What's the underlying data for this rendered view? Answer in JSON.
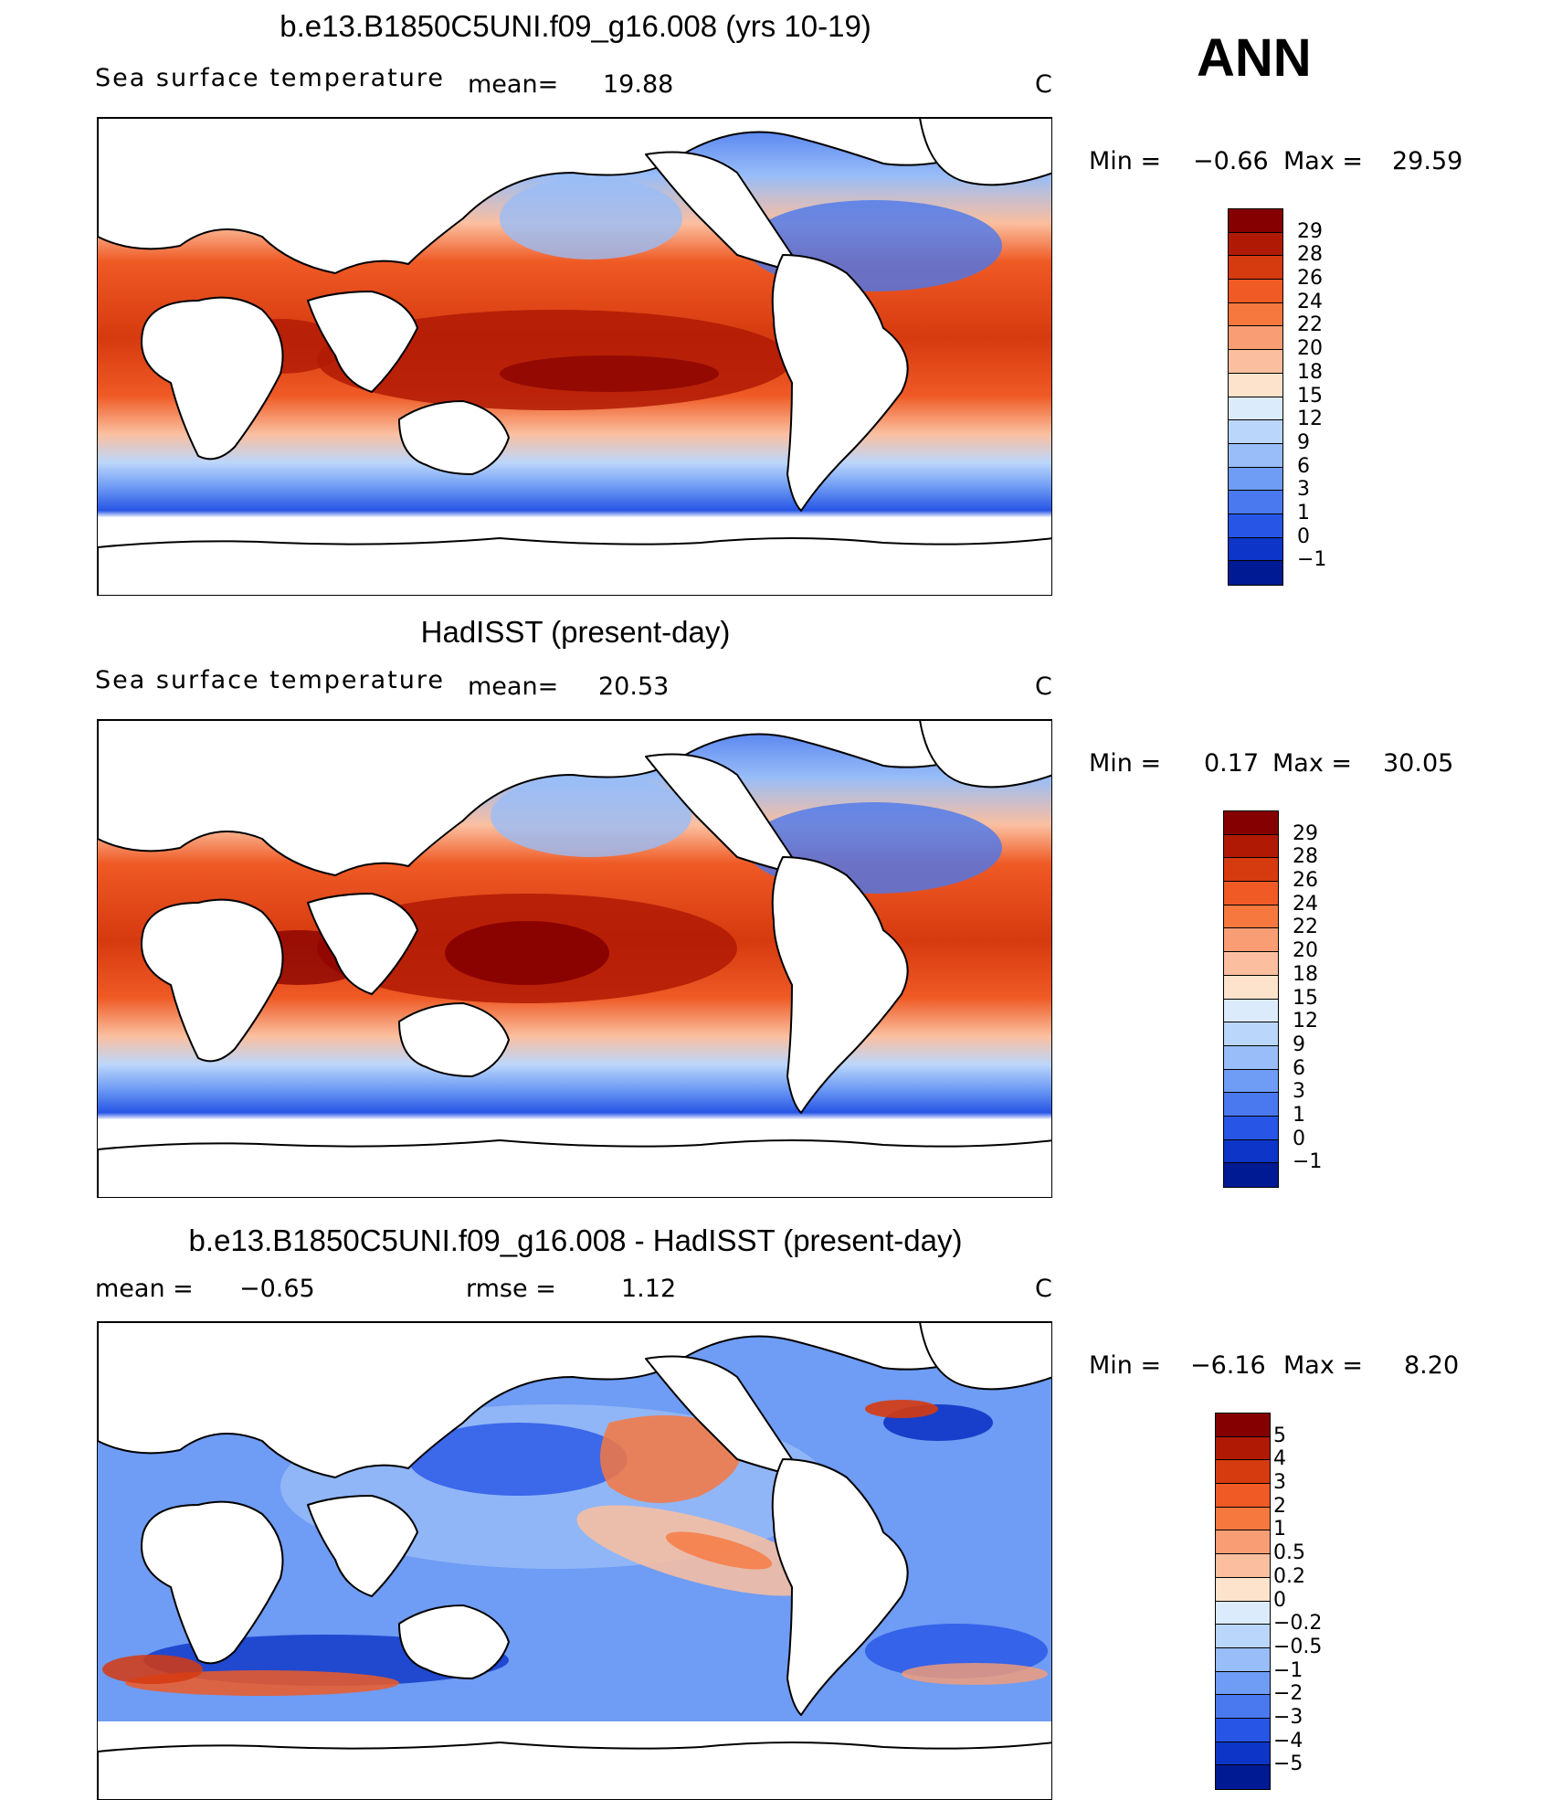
{
  "season": "ANN",
  "panels": [
    {
      "title": "b.e13.B1850C5UNI.f09_g16.008 (yrs 10-19)",
      "left_label": "Sea surface temperature",
      "stat1_label": "mean=",
      "stat1_value": "19.88",
      "stat2_label": "",
      "stat2_value": "",
      "units": "C",
      "min_label": "Min =",
      "min_value": "−0.66",
      "max_label": "Max =",
      "max_value": "29.59",
      "colorbar_labels": [
        "29",
        "28",
        "26",
        "24",
        "22",
        "20",
        "18",
        "15",
        "12",
        "9",
        "6",
        "3",
        "1",
        "0",
        "−1"
      ]
    },
    {
      "title": "HadISST (present-day)",
      "left_label": "Sea surface temperature",
      "stat1_label": "mean=",
      "stat1_value": "20.53",
      "stat2_label": "",
      "stat2_value": "",
      "units": "C",
      "min_label": "Min =",
      "min_value": "0.17",
      "max_label": "Max =",
      "max_value": "30.05",
      "colorbar_labels": [
        "29",
        "28",
        "26",
        "24",
        "22",
        "20",
        "18",
        "15",
        "12",
        "9",
        "6",
        "3",
        "1",
        "0",
        "−1"
      ]
    },
    {
      "title": "b.e13.B1850C5UNI.f09_g16.008 - HadISST (present-day)",
      "left_label": "",
      "stat1_label": "mean =",
      "stat1_value": "−0.65",
      "stat2_label": "rmse =",
      "stat2_value": "1.12",
      "units": "C",
      "min_label": "Min =",
      "min_value": "−6.16",
      "max_label": "Max =",
      "max_value": "8.20",
      "colorbar_labels": [
        "5",
        "4",
        "3",
        "2",
        "1",
        "0.5",
        "0.2",
        "0",
        "−0.2",
        "−0.5",
        "−1",
        "−2",
        "−3",
        "−4",
        "−5"
      ]
    }
  ],
  "colorbar_colors": [
    "#850000",
    "#b01a05",
    "#d63a0f",
    "#ef5a25",
    "#f7783f",
    "#f99e74",
    "#fbbf9f",
    "#fde2cc",
    "#dcebfb",
    "#bbd6fb",
    "#98bdf8",
    "#6f9cf4",
    "#4a78ee",
    "#2755e6",
    "#0d35c7",
    "#001a94"
  ]
}
